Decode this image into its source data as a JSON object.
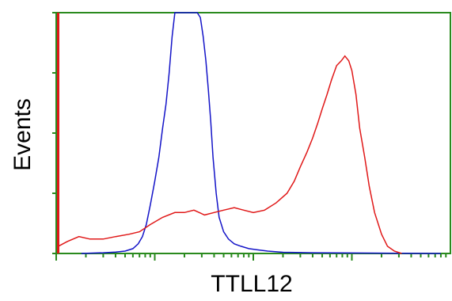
{
  "chart_data": {
    "type": "line",
    "title": "",
    "xlabel": "TTLL12",
    "ylabel": "Events",
    "x_scale": "log",
    "xlim": [
      1,
      10000
    ],
    "ylim": [
      0,
      100
    ],
    "grid": false,
    "legend": "none",
    "frame_color": "#2a8a1e",
    "series": [
      {
        "color": "#1414c8",
        "x": [
          1.8,
          3,
          4,
          5,
          6,
          6.8,
          7.5,
          8.2,
          9,
          10,
          11,
          12,
          13,
          14,
          15,
          16,
          17,
          18.5,
          20,
          21.5,
          23,
          25,
          27,
          29,
          31,
          33,
          35,
          37,
          39,
          42,
          45,
          50,
          56,
          64,
          75,
          90,
          110,
          140,
          200,
          400,
          1000,
          3000,
          8000
        ],
        "y": [
          0,
          0.3,
          0.6,
          1,
          2,
          4,
          7,
          12,
          20,
          30,
          40,
          52,
          62,
          75,
          90,
          100,
          100,
          100,
          100,
          100,
          100,
          100,
          100,
          98,
          90,
          80,
          68,
          55,
          40,
          25,
          15,
          9,
          6,
          4,
          3,
          2,
          1.5,
          1,
          0.5,
          0.3,
          0.2,
          0.1,
          0
        ]
      },
      {
        "color": "#e01818",
        "x": [
          1.05,
          1.3,
          1.7,
          2.2,
          3,
          4,
          5.5,
          7,
          9,
          12,
          16,
          20,
          25,
          32,
          40,
          50,
          64,
          80,
          100,
          130,
          170,
          220,
          260,
          300,
          350,
          400,
          450,
          500,
          560,
          620,
          700,
          780,
          850,
          930,
          1000,
          1100,
          1200,
          1350,
          1500,
          1700,
          2000,
          2300,
          2700,
          3200
        ],
        "y": [
          3,
          5,
          7,
          6,
          6,
          7,
          8,
          9,
          12,
          15,
          17,
          17,
          18,
          16,
          17,
          18,
          19,
          18,
          17,
          18,
          21,
          25,
          30,
          36,
          42,
          48,
          54,
          60,
          66,
          72,
          78,
          80,
          82,
          80,
          76,
          66,
          52,
          40,
          28,
          17,
          8,
          3,
          1,
          0
        ]
      }
    ]
  }
}
